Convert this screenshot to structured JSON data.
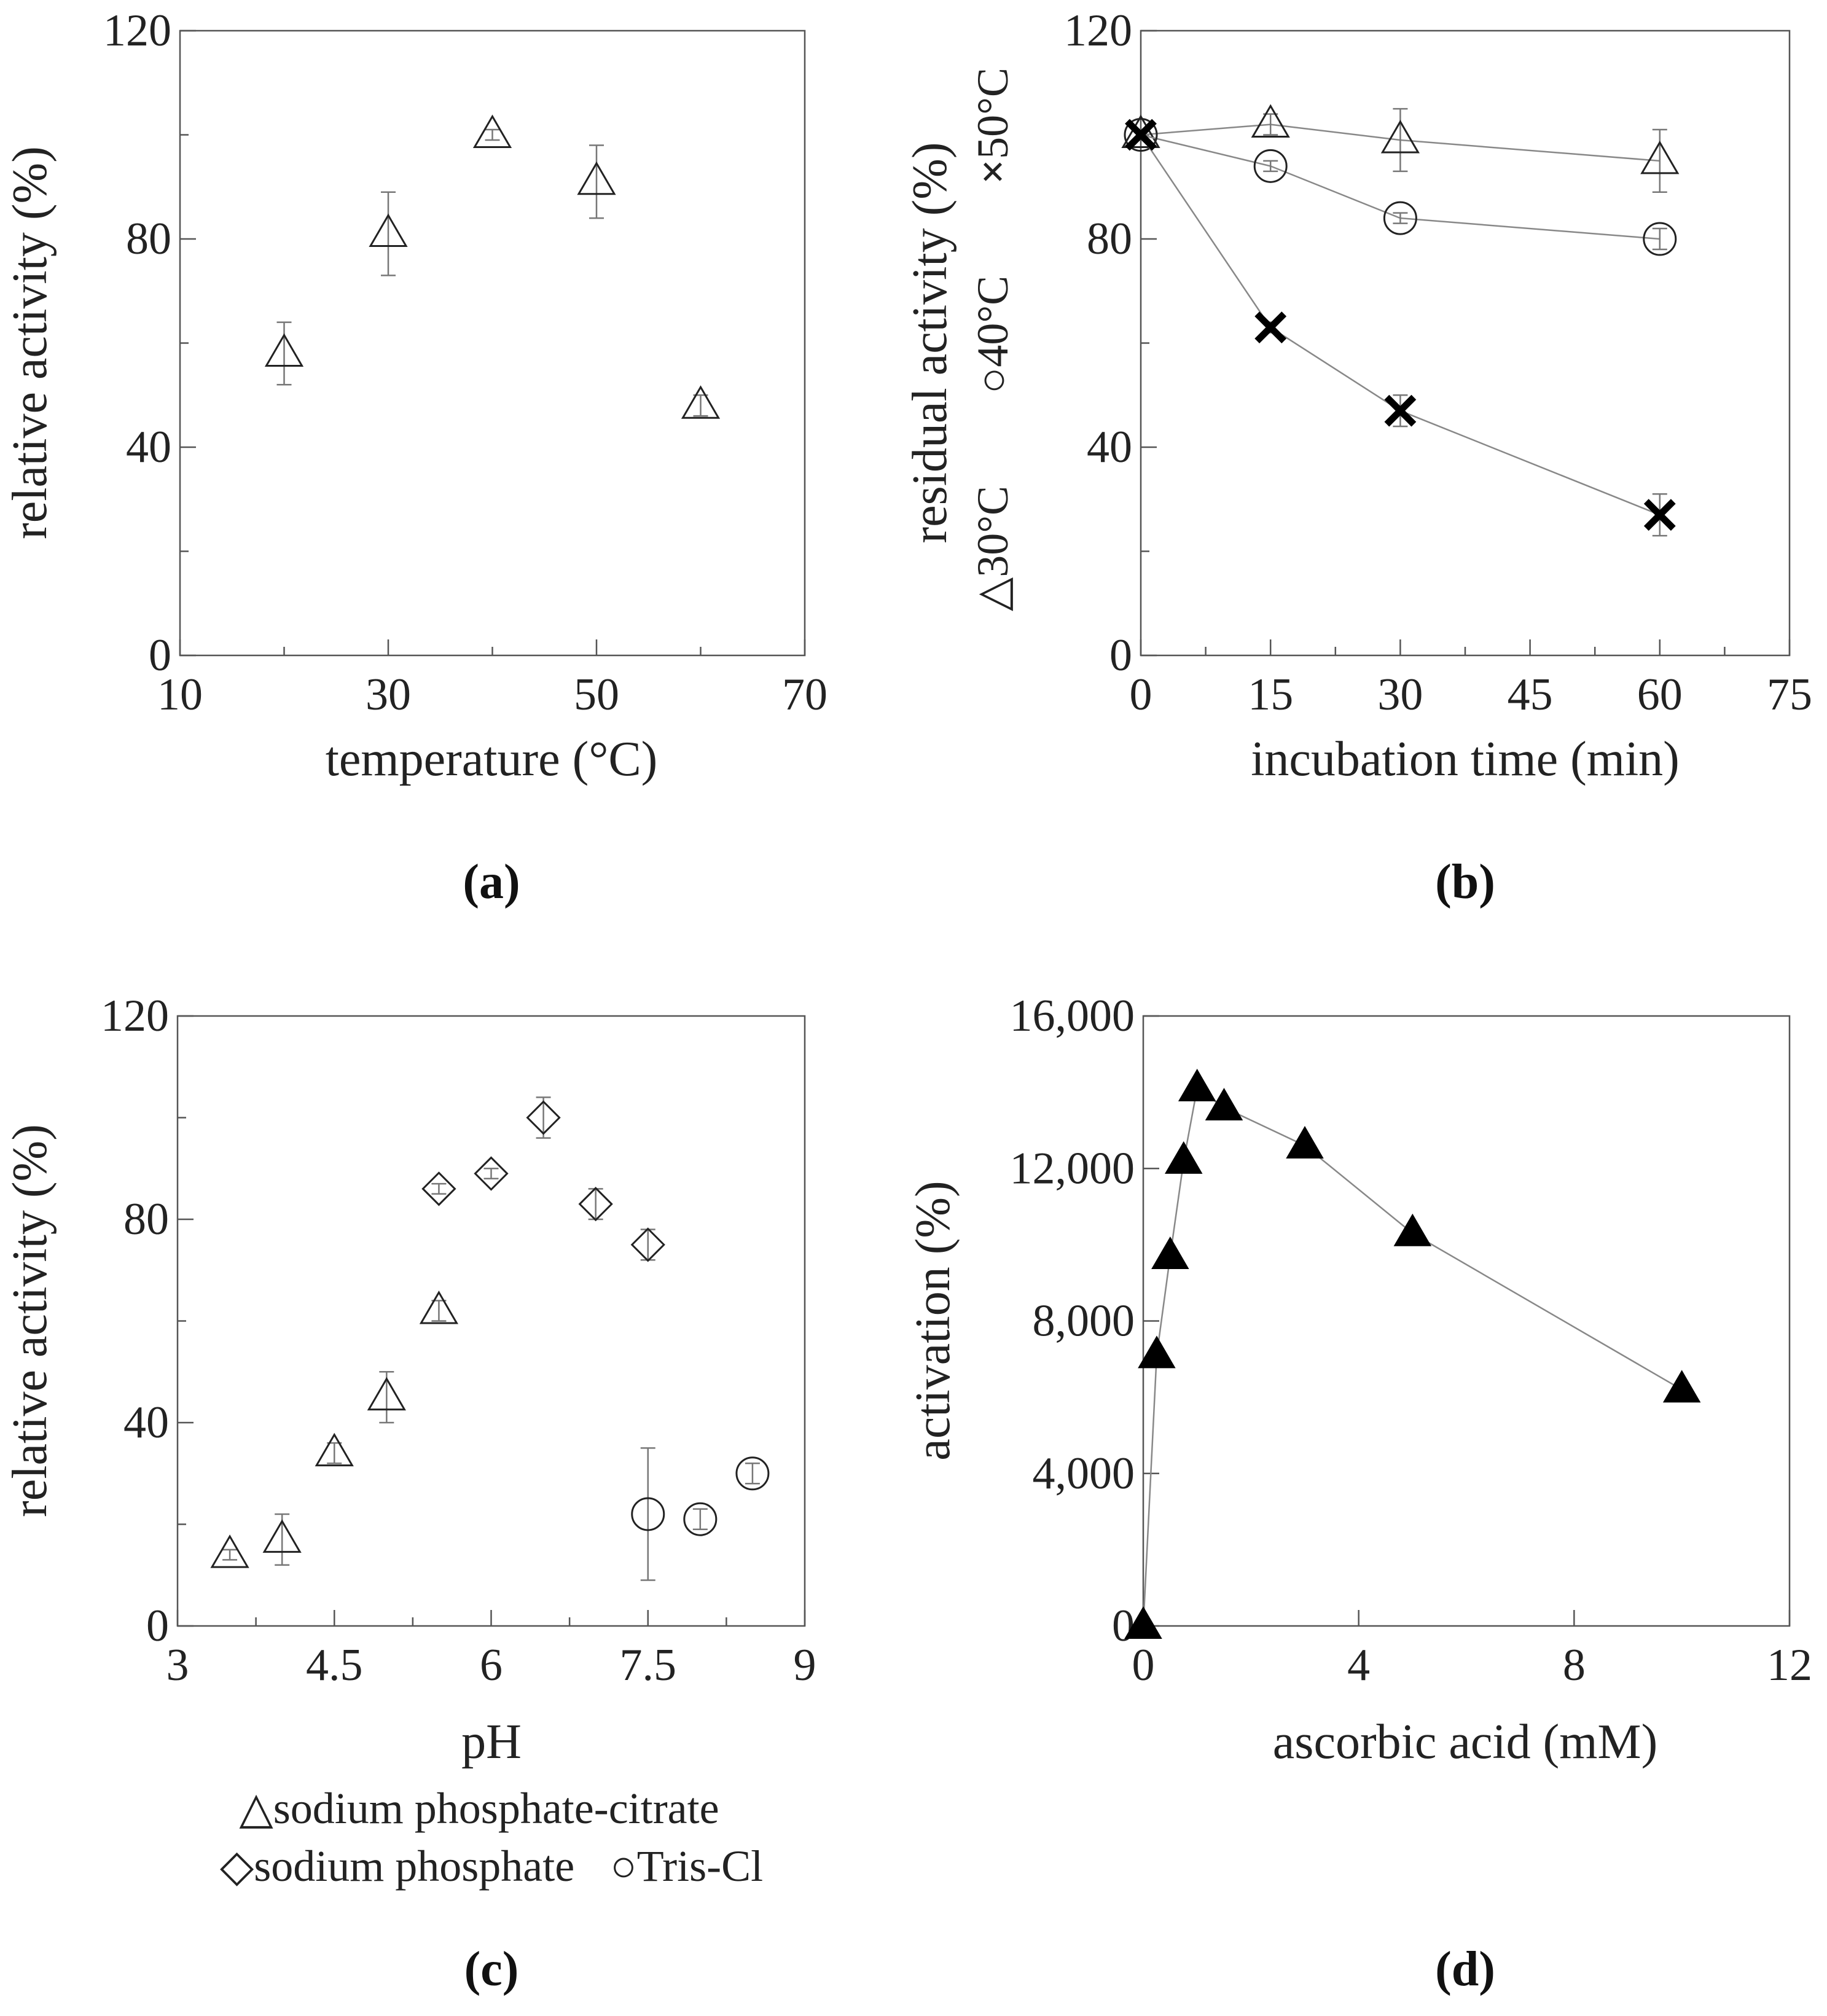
{
  "chart_data": [
    {
      "id": "a",
      "type": "scatter",
      "panel_label": "(a)",
      "xlabel": "temperature (°C)",
      "ylabel": "relative activity (%)",
      "xlim": [
        10,
        70
      ],
      "ylim": [
        0,
        120
      ],
      "x_ticks": [
        "10",
        "30",
        "50",
        "70"
      ],
      "y_ticks": [
        "0",
        "40",
        "80",
        "120"
      ],
      "series": [
        {
          "name": "relative activity",
          "marker": "triangle-open",
          "connected": false,
          "points": [
            {
              "x": 20,
              "y": 58,
              "err": 6
            },
            {
              "x": 30,
              "y": 81,
              "err": 8
            },
            {
              "x": 40,
              "y": 100,
              "err": 1
            },
            {
              "x": 50,
              "y": 91,
              "err": 7
            },
            {
              "x": 60,
              "y": 48,
              "err": 2
            }
          ]
        }
      ]
    },
    {
      "id": "b",
      "type": "line",
      "panel_label": "(b)",
      "xlabel": "incubation time (min)",
      "ylabel": "residual activity (%)",
      "xlim": [
        0,
        75
      ],
      "ylim": [
        0,
        120
      ],
      "x_ticks": [
        "0",
        "15",
        "30",
        "45",
        "60",
        "75"
      ],
      "y_ticks": [
        "0",
        "40",
        "80",
        "120"
      ],
      "legend": [
        {
          "symbol": "△",
          "label": "30°C"
        },
        {
          "symbol": "○",
          "label": "40°C"
        },
        {
          "symbol": "×",
          "label": "50°C"
        }
      ],
      "series": [
        {
          "name": "30°C",
          "marker": "triangle-open",
          "connected": true,
          "points": [
            {
              "x": 0,
              "y": 100,
              "err": 1
            },
            {
              "x": 15,
              "y": 102,
              "err": 2
            },
            {
              "x": 30,
              "y": 99,
              "err": 6
            },
            {
              "x": 60,
              "y": 95,
              "err": 6
            }
          ]
        },
        {
          "name": "40°C",
          "marker": "circle-open",
          "connected": true,
          "points": [
            {
              "x": 0,
              "y": 100,
              "err": 1
            },
            {
              "x": 15,
              "y": 94,
              "err": 1
            },
            {
              "x": 30,
              "y": 84,
              "err": 1
            },
            {
              "x": 60,
              "y": 80,
              "err": 2
            }
          ]
        },
        {
          "name": "50°C",
          "marker": "cross",
          "connected": true,
          "points": [
            {
              "x": 0,
              "y": 100,
              "err": 1
            },
            {
              "x": 15,
              "y": 63,
              "err": 1
            },
            {
              "x": 30,
              "y": 47,
              "err": 3
            },
            {
              "x": 60,
              "y": 27,
              "err": 4
            }
          ]
        }
      ]
    },
    {
      "id": "c",
      "type": "scatter",
      "panel_label": "(c)",
      "xlabel": "pH",
      "ylabel": "relative activity (%)",
      "xlim": [
        3,
        9
      ],
      "ylim": [
        0,
        120
      ],
      "x_ticks": [
        "3",
        "4.5",
        "6",
        "7.5",
        "9"
      ],
      "y_ticks": [
        "0",
        "40",
        "80",
        "120"
      ],
      "legend": [
        {
          "symbol": "△",
          "label": "sodium phosphate-citrate"
        },
        {
          "symbol": "◇",
          "label": "sodium phosphate"
        },
        {
          "symbol": "○",
          "label": "Tris-Cl"
        }
      ],
      "series": [
        {
          "name": "sodium phosphate-citrate",
          "marker": "triangle-open",
          "connected": false,
          "points": [
            {
              "x": 3.5,
              "y": 14,
              "err": 1
            },
            {
              "x": 4.0,
              "y": 17,
              "err": 5
            },
            {
              "x": 4.5,
              "y": 34,
              "err": 2
            },
            {
              "x": 5.0,
              "y": 45,
              "err": 5
            },
            {
              "x": 5.5,
              "y": 62,
              "err": 2
            }
          ]
        },
        {
          "name": "sodium phosphate",
          "marker": "diamond-open",
          "connected": false,
          "points": [
            {
              "x": 5.5,
              "y": 86,
              "err": 1
            },
            {
              "x": 6.0,
              "y": 89,
              "err": 1
            },
            {
              "x": 6.5,
              "y": 100,
              "err": 4
            },
            {
              "x": 7.0,
              "y": 83,
              "err": 3
            },
            {
              "x": 7.5,
              "y": 75,
              "err": 3
            }
          ]
        },
        {
          "name": "Tris-Cl",
          "marker": "circle-open",
          "connected": false,
          "points": [
            {
              "x": 7.5,
              "y": 22,
              "err": 13
            },
            {
              "x": 8.0,
              "y": 21,
              "err": 2
            },
            {
              "x": 8.5,
              "y": 30,
              "err": 2
            }
          ]
        }
      ]
    },
    {
      "id": "d",
      "type": "line",
      "panel_label": "(d)",
      "xlabel": "ascorbic acid (mM)",
      "ylabel": "activation (%)",
      "xlim": [
        0,
        12
      ],
      "ylim": [
        0,
        16000
      ],
      "x_ticks": [
        "0",
        "4",
        "8",
        "12"
      ],
      "y_ticks": [
        "0",
        "4,000",
        "8,000",
        "12,000",
        "16,000"
      ],
      "series": [
        {
          "name": "activation",
          "marker": "triangle-filled",
          "connected": true,
          "points": [
            {
              "x": 0,
              "y": 0
            },
            {
              "x": 0.25,
              "y": 7100
            },
            {
              "x": 0.5,
              "y": 9700
            },
            {
              "x": 0.75,
              "y": 12200
            },
            {
              "x": 1.0,
              "y": 14100
            },
            {
              "x": 1.5,
              "y": 13600
            },
            {
              "x": 3.0,
              "y": 12600
            },
            {
              "x": 5.0,
              "y": 10300
            },
            {
              "x": 10.0,
              "y": 6200
            }
          ]
        }
      ]
    }
  ]
}
